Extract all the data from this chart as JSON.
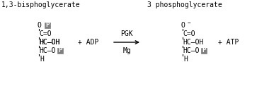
{
  "bg_color": "#ffffff",
  "text_color": "#000000",
  "p_box_color": "#808080",
  "p_text_color": "#ffffff",
  "title_left": "1,3-bisphoglycerate",
  "title_right": "3 phosphoglycerate",
  "arrow_label_top": "PGK",
  "arrow_label_bottom": "Mg",
  "font_family": "monospace",
  "figsize": [
    3.8,
    1.32
  ],
  "dpi": 100
}
